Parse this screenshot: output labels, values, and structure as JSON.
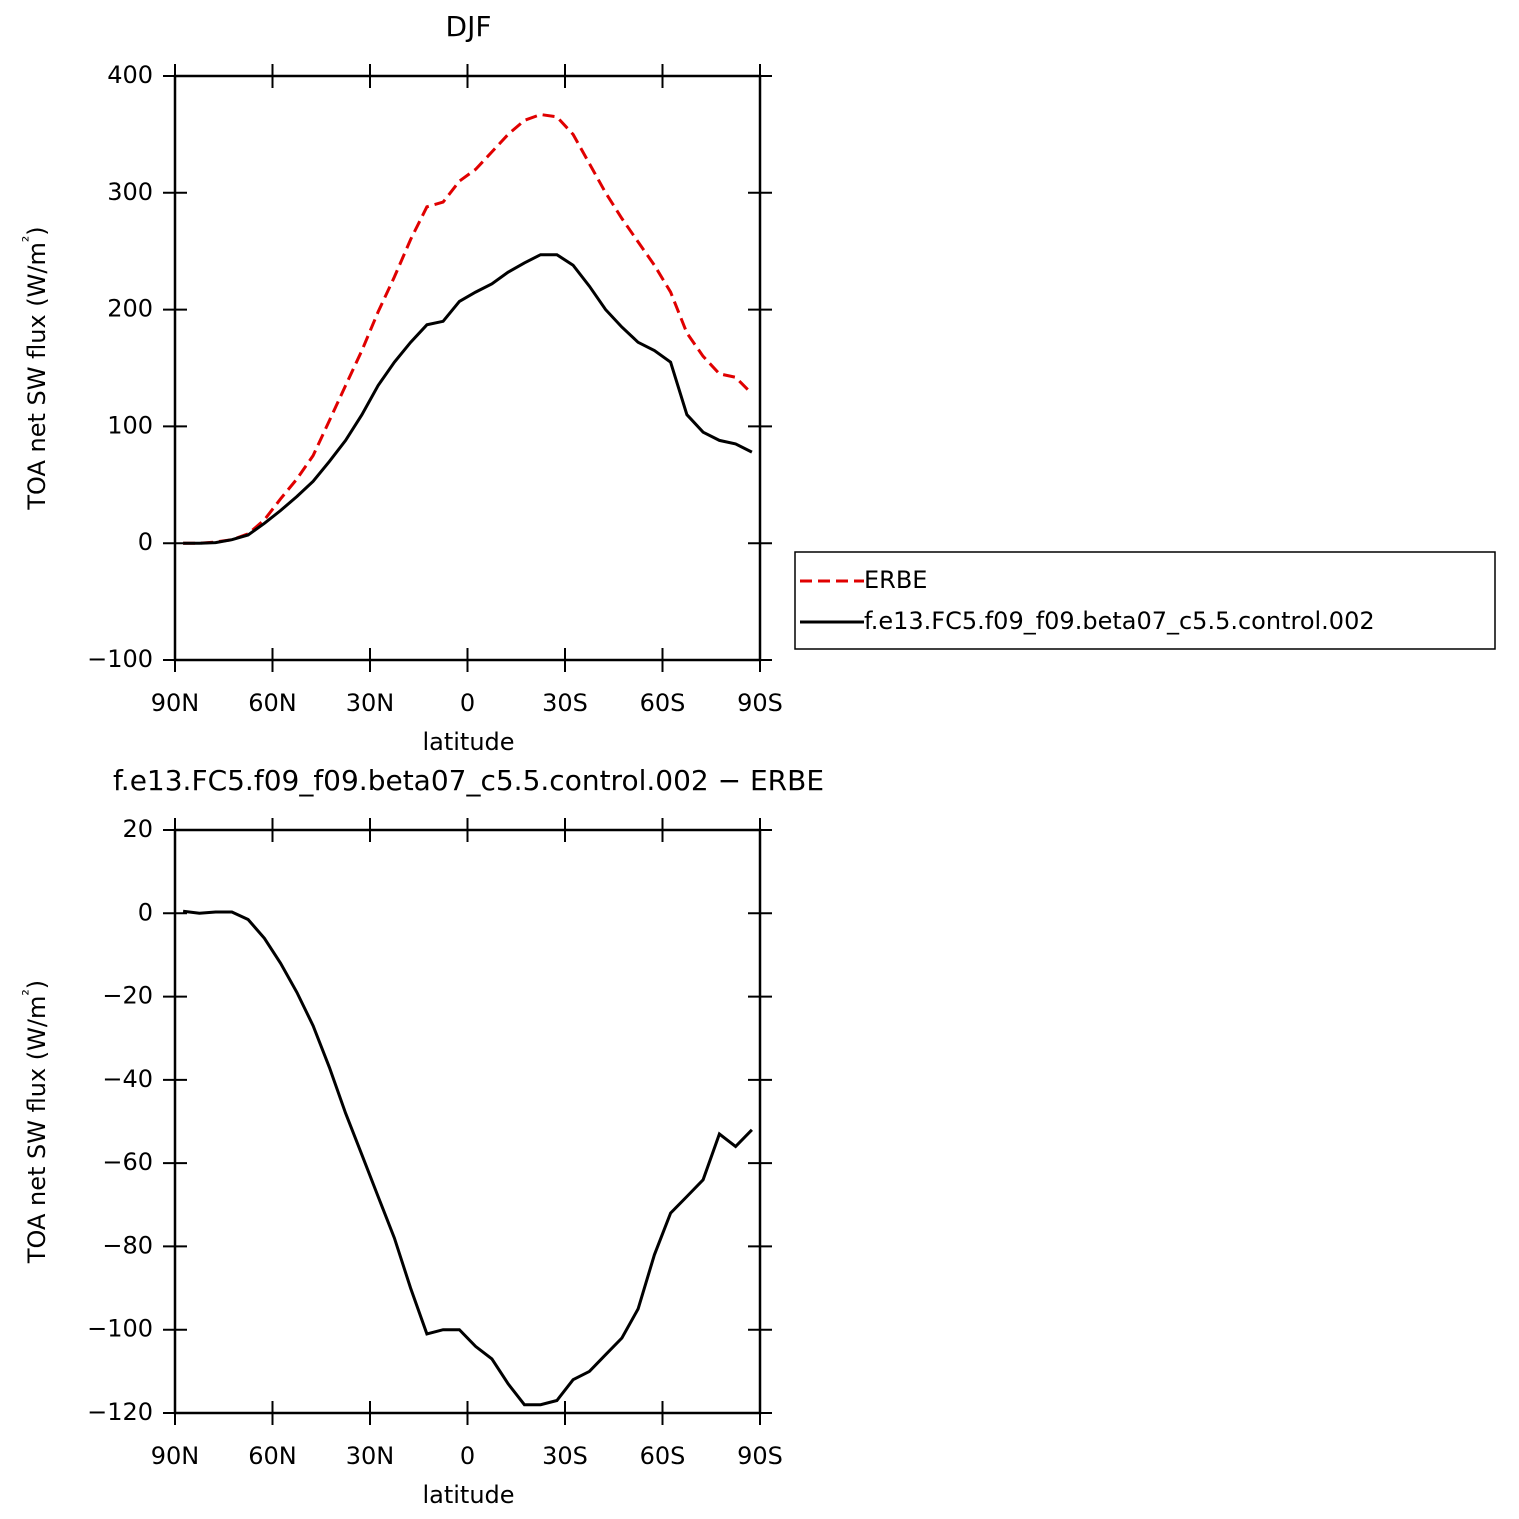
{
  "chart_data": [
    {
      "type": "line",
      "title": "DJF",
      "xlabel": "latitude",
      "ylabel": "TOA net SW flux (W/m²)",
      "x": [
        87.5,
        82.5,
        77.5,
        72.5,
        67.5,
        62.5,
        57.5,
        52.5,
        47.5,
        42.5,
        37.5,
        32.5,
        27.5,
        22.5,
        17.5,
        12.5,
        7.5,
        2.5,
        -2.5,
        -7.5,
        -12.5,
        -17.5,
        -22.5,
        -27.5,
        -32.5,
        -37.5,
        -42.5,
        -47.5,
        -52.5,
        -57.5,
        -62.5,
        -67.5,
        -72.5,
        -77.5,
        -82.5,
        -87.5
      ],
      "series": [
        {
          "name": "ERBE",
          "color": "#e00000",
          "style": "dashed",
          "values": [
            0,
            0,
            1,
            3,
            8,
            20,
            38,
            55,
            75,
            105,
            135,
            165,
            198,
            228,
            260,
            288,
            292,
            310,
            320,
            335,
            350,
            362,
            367,
            365,
            350,
            325,
            300,
            278,
            258,
            238,
            215,
            180,
            160,
            145,
            142,
            128
          ]
        },
        {
          "name": "f.e13.FC5.f09_f09.beta07_c5.5.control.002",
          "color": "#000000",
          "style": "solid",
          "values": [
            0,
            0,
            0.5,
            3,
            7,
            17,
            28,
            40,
            53,
            70,
            88,
            110,
            135,
            155,
            172,
            187,
            190,
            207,
            215,
            222,
            232,
            240,
            247,
            247,
            238,
            220,
            200,
            185,
            172,
            165,
            155,
            110,
            95,
            88,
            85,
            78
          ]
        }
      ],
      "xlim": [
        90,
        -90
      ],
      "xticks": [
        {
          "value": 90,
          "label": "90N"
        },
        {
          "value": 60,
          "label": "60N"
        },
        {
          "value": 30,
          "label": "30N"
        },
        0,
        {
          "value": -30,
          "label": "30S"
        },
        {
          "value": -60,
          "label": "60S"
        },
        {
          "value": -90,
          "label": "90S"
        }
      ],
      "ylim": [
        -100,
        400
      ],
      "yticks": [
        {
          "value": -100,
          "label": "−100"
        },
        0,
        100,
        200,
        300,
        400
      ],
      "legend": "right"
    },
    {
      "type": "line",
      "title": "f.e13.FC5.f09_f09.beta07_c5.5.control.002 − ERBE",
      "xlabel": "latitude",
      "ylabel": "TOA net SW flux (W/m²)",
      "x": [
        87.5,
        82.5,
        77.5,
        72.5,
        67.5,
        62.5,
        57.5,
        52.5,
        47.5,
        42.5,
        37.5,
        32.5,
        27.5,
        22.5,
        17.5,
        12.5,
        7.5,
        2.5,
        -2.5,
        -7.5,
        -12.5,
        -17.5,
        -22.5,
        -27.5,
        -32.5,
        -37.5,
        -42.5,
        -47.5,
        -52.5,
        -57.5,
        -62.5,
        -67.5,
        -72.5,
        -77.5,
        -82.5,
        -87.5
      ],
      "series": [
        {
          "color": "#000000",
          "style": "solid",
          "values": [
            0.5,
            0,
            0.3,
            0.3,
            -1.5,
            -6,
            -12,
            -19,
            -27,
            -37,
            -48,
            -58,
            -68,
            -78,
            -90,
            -101,
            -100,
            -100,
            -104,
            -107,
            -113,
            -118,
            -118,
            -117,
            -112,
            -110,
            -106,
            -102,
            -95,
            -82,
            -72,
            -68,
            -64,
            -53,
            -56,
            -52
          ]
        }
      ],
      "xlim": [
        90,
        -90
      ],
      "xticks": [
        {
          "value": 90,
          "label": "90N"
        },
        {
          "value": 60,
          "label": "60N"
        },
        {
          "value": 30,
          "label": "30N"
        },
        0,
        {
          "value": -30,
          "label": "30S"
        },
        {
          "value": -60,
          "label": "60S"
        },
        {
          "value": -90,
          "label": "90S"
        }
      ],
      "ylim": [
        -120,
        20
      ],
      "yticks": [
        {
          "value": -120,
          "label": "−120"
        },
        {
          "value": -100,
          "label": "−100"
        },
        {
          "value": -80,
          "label": "−80"
        },
        {
          "value": -60,
          "label": "−60"
        },
        {
          "value": -40,
          "label": "−40"
        },
        {
          "value": -20,
          "label": "−20"
        },
        0,
        20
      ]
    }
  ]
}
